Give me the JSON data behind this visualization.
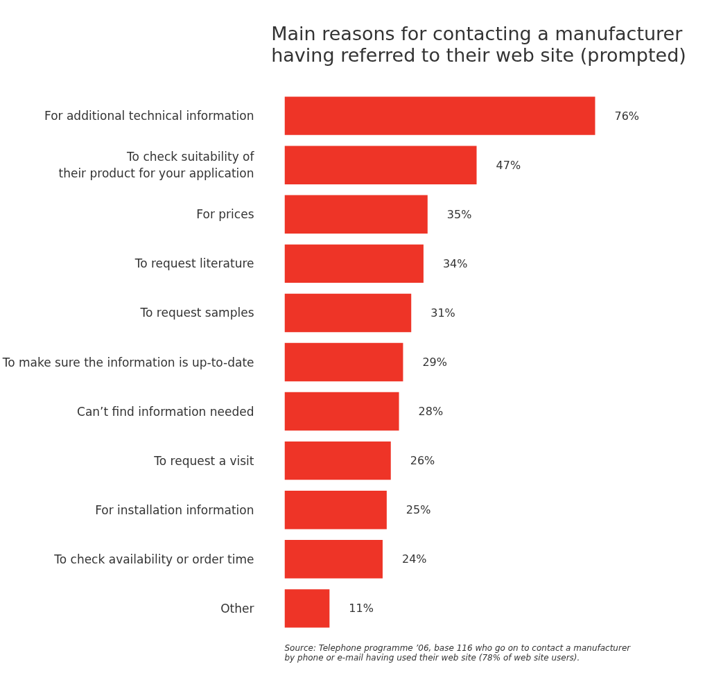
{
  "chart_data": {
    "type": "bar",
    "orientation": "horizontal",
    "title": "Main reasons for contacting a manufacturer\nhaving referred to their web site (prompted)",
    "categories": [
      "For additional technical information",
      "To check suitability of\ntheir product for your application",
      "For prices",
      "To request literature",
      "To request samples",
      "To make sure the information is up-to-date",
      "Can’t find information needed",
      "To request a visit",
      "For installation information",
      "To check availability or order time",
      "Other"
    ],
    "values": [
      76,
      47,
      35,
      34,
      31,
      29,
      28,
      26,
      25,
      24,
      11
    ],
    "value_labels": [
      "76%",
      "47%",
      "35%",
      "34%",
      "31%",
      "29%",
      "28%",
      "26%",
      "25%",
      "24%",
      "11%"
    ],
    "color": "#ee3427",
    "grid": false,
    "tick_labels": "y",
    "annotations": [
      "Source: Telephone programme ’06, base 116 who go on to contact a manufacturer\nby phone or e-mail having used their web site (78% of web site users)."
    ]
  }
}
